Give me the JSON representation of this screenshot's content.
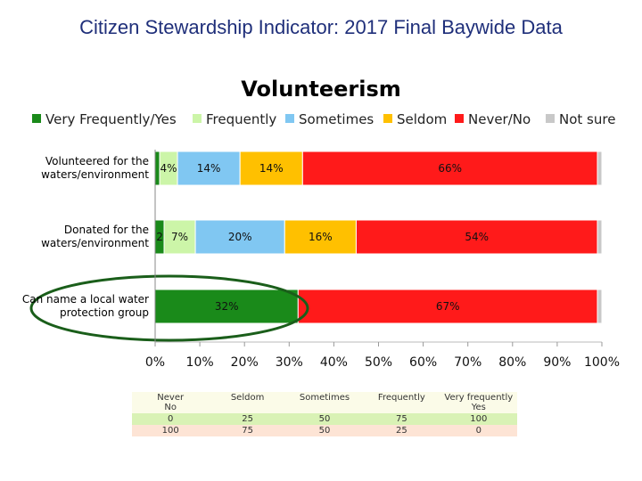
{
  "page_title": "Citizen Stewardship Indicator: 2017 Final Baywide Data",
  "colors": {
    "title": "#1f2f7a",
    "Very Frequently/Yes": "#1a8a1a",
    "Frequently": "#ccf5a8",
    "Sometimes": "#80c7f2",
    "Seldom": "#ffc000",
    "Never/No": "#ff1a1a",
    "Not sure": "#c8c8c8",
    "ellipse": "#1a5e1a"
  },
  "chart_data": {
    "type": "bar",
    "orientation": "horizontal",
    "stacked": true,
    "title": "Volunteerism",
    "categories": [
      "Volunteered for the waters/environment",
      "Donated for the waters/environment",
      "Can name a local water protection group"
    ],
    "series": [
      {
        "name": "Very Frequently/Yes",
        "values": [
          1,
          2,
          32
        ]
      },
      {
        "name": "Frequently",
        "values": [
          4,
          7,
          0
        ]
      },
      {
        "name": "Sometimes",
        "values": [
          14,
          20,
          0
        ]
      },
      {
        "name": "Seldom",
        "values": [
          14,
          16,
          0
        ]
      },
      {
        "name": "Never/No",
        "values": [
          66,
          54,
          67
        ]
      },
      {
        "name": "Not sure",
        "values": [
          1,
          1,
          1
        ]
      }
    ],
    "data_labels": [
      [
        "",
        "4%",
        "14%",
        "14%",
        "66%",
        ""
      ],
      [
        "2",
        "7%",
        "20%",
        "16%",
        "54%",
        ""
      ],
      [
        "32%",
        "",
        "",
        "",
        "67%",
        ""
      ]
    ],
    "x_ticks": [
      "0%",
      "10%",
      "20%",
      "30%",
      "40%",
      "50%",
      "60%",
      "70%",
      "80%",
      "90%",
      "100%"
    ],
    "xlim": [
      0,
      100
    ],
    "legend_position": "top",
    "highlight": "Can name a local water protection group"
  },
  "scale_table": {
    "headers": [
      "Never\nNo",
      "Seldom",
      "Sometimes",
      "Frequently",
      "Very frequently\nYes"
    ],
    "rows": [
      [
        "0",
        "25",
        "50",
        "75",
        "100"
      ],
      [
        "100",
        "75",
        "50",
        "25",
        "0"
      ]
    ]
  }
}
